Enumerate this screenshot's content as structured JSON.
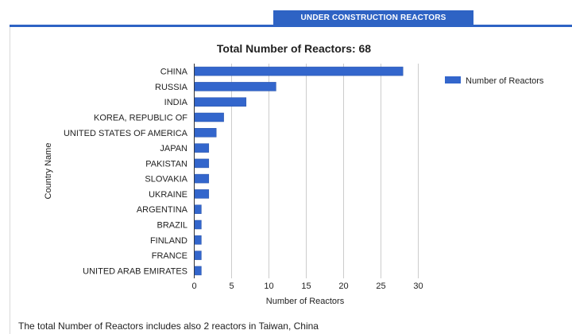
{
  "header": {
    "tab_label": "UNDER CONSTRUCTION REACTORS"
  },
  "footnote": "The total Number of Reactors includes also 2 reactors in Taiwan, China",
  "colors": {
    "accent": "#2e63c4",
    "bar": "#3366cc",
    "grid": "#cccccc"
  },
  "chart_data": {
    "type": "bar",
    "orientation": "horizontal",
    "title": "Total Number of Reactors: 68",
    "xlabel": "Number of Reactors",
    "ylabel": "Country Name",
    "xlim": [
      0,
      30
    ],
    "xticks": [
      0,
      5,
      10,
      15,
      20,
      25,
      30
    ],
    "grid": true,
    "legend_position": "right",
    "categories": [
      "CHINA",
      "RUSSIA",
      "INDIA",
      "KOREA, REPUBLIC OF",
      "UNITED STATES OF AMERICA",
      "JAPAN",
      "PAKISTAN",
      "SLOVAKIA",
      "UKRAINE",
      "ARGENTINA",
      "BRAZIL",
      "FINLAND",
      "FRANCE",
      "UNITED ARAB EMIRATES"
    ],
    "series": [
      {
        "name": "Number of Reactors",
        "values": [
          28,
          11,
          7,
          4,
          3,
          2,
          2,
          2,
          2,
          1,
          1,
          1,
          1,
          1
        ]
      }
    ]
  }
}
